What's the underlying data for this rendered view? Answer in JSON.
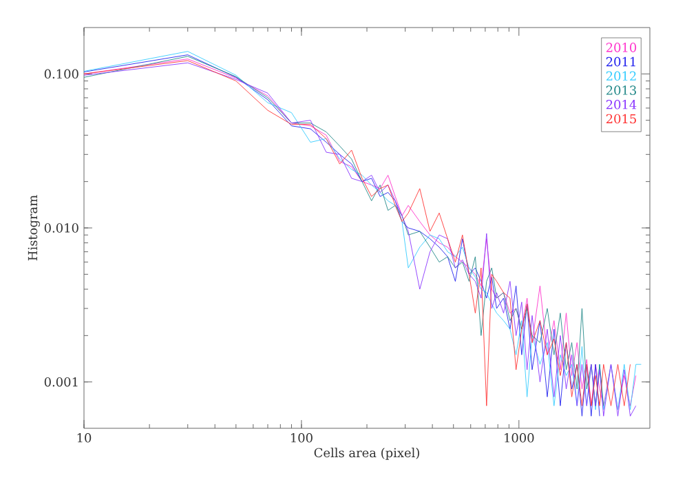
{
  "chart_data": {
    "type": "line",
    "xlabel": "Cells area (pixel)",
    "ylabel": "Histogram",
    "log": "xy",
    "legend": "top right",
    "grid": false,
    "marker": "none",
    "line_style": "solid",
    "xlim": [
      10,
      4000
    ],
    "ylim": [
      0.0005,
      0.2
    ],
    "xticks": [
      10,
      100,
      1000
    ],
    "yticks": [
      {
        "value": 0.001,
        "label": "0.001"
      },
      {
        "value": 0.01,
        "label": "0.010"
      },
      {
        "value": 0.1,
        "label": "0.100"
      }
    ],
    "x": [
      10,
      30,
      50,
      70,
      90,
      110,
      130,
      150,
      170,
      190,
      210,
      230,
      250,
      270,
      290,
      310,
      350,
      390,
      430,
      470,
      510,
      550,
      590,
      630,
      670,
      710,
      750,
      790,
      850,
      910,
      970,
      1030,
      1090,
      1150,
      1250,
      1350,
      1450,
      1550,
      1650,
      1750,
      1850,
      1950,
      2050,
      2150,
      2250,
      2350,
      2450,
      2650,
      2850,
      3050,
      3250,
      3450,
      3650
    ],
    "series": [
      {
        "name": "2010",
        "color": "#ff33cc",
        "values": [
          0.1,
          0.125,
          0.094,
          0.072,
          0.048,
          0.046,
          0.04,
          0.027,
          0.025,
          0.02,
          0.019,
          0.018,
          0.022,
          0.016,
          0.012,
          0.014,
          0.011,
          0.009,
          0.008,
          0.0075,
          0.0065,
          0.006,
          0.0055,
          0.005,
          0.0042,
          0.0085,
          0.004,
          0.0035,
          0.0038,
          0.0028,
          0.003,
          0.0022,
          0.0035,
          0.0018,
          0.0042,
          0.0015,
          0.0025,
          0.0012,
          0.0028,
          0.0011,
          0.0018,
          0.0009,
          0.0014,
          0.0007,
          0.0013,
          0.0009,
          0.0007,
          0.0013,
          0.00066,
          0.0011,
          0.0007,
          0.0011,
          null
        ]
      },
      {
        "name": "2011",
        "color": "#2222ee",
        "values": [
          0.103,
          0.133,
          0.095,
          0.068,
          0.046,
          0.044,
          0.036,
          0.03,
          0.026,
          0.02,
          0.021,
          0.016,
          0.017,
          0.015,
          0.011,
          0.01,
          0.0095,
          0.0085,
          0.0075,
          0.0065,
          0.0045,
          0.0085,
          0.005,
          0.0055,
          0.0045,
          0.0035,
          0.0048,
          0.003,
          0.0035,
          0.0022,
          0.0042,
          0.0015,
          0.0032,
          0.0012,
          0.0025,
          0.0008,
          0.0022,
          0.0007,
          0.0018,
          0.0009,
          0.0013,
          0.0006,
          0.0013,
          0.0006,
          0.0013,
          0.0006,
          null,
          null,
          null,
          null,
          null,
          null,
          null
        ]
      },
      {
        "name": "2012",
        "color": "#33ccff",
        "values": [
          0.104,
          0.14,
          0.098,
          0.065,
          0.056,
          0.036,
          0.038,
          0.028,
          0.024,
          0.022,
          0.019,
          0.017,
          0.015,
          0.014,
          0.011,
          0.0055,
          0.0075,
          0.009,
          0.0085,
          0.007,
          0.0065,
          0.0075,
          0.0055,
          0.0048,
          0.004,
          0.0038,
          0.0032,
          0.0028,
          0.0025,
          0.0022,
          0.0015,
          0.0025,
          0.0008,
          0.002,
          0.0013,
          0.0018,
          0.0007,
          0.0015,
          0.0011,
          0.0013,
          0.0007,
          0.0017,
          0.0007,
          0.0013,
          0.00066,
          0.0013,
          0.00066,
          0.0013,
          0.00066,
          0.0013,
          0.00066,
          0.0013,
          0.0013
        ]
      },
      {
        "name": "2013",
        "color": "#228888",
        "values": [
          0.095,
          0.13,
          0.096,
          0.07,
          0.048,
          0.048,
          0.042,
          0.034,
          0.028,
          0.02,
          0.015,
          0.019,
          0.013,
          0.014,
          0.012,
          0.009,
          0.0095,
          0.0075,
          0.006,
          0.0065,
          0.0055,
          0.006,
          0.0045,
          0.0065,
          0.002,
          0.0045,
          0.0055,
          0.0035,
          0.0038,
          0.0025,
          0.003,
          0.0022,
          0.003,
          0.002,
          0.0018,
          0.003,
          0.0015,
          0.0028,
          0.0012,
          0.0018,
          0.0009,
          0.003,
          0.0009,
          0.0013,
          0.0007,
          0.0013,
          0.0007,
          null,
          null,
          null,
          null,
          null,
          null
        ]
      },
      {
        "name": "2014",
        "color": "#8833ff",
        "values": [
          0.098,
          0.118,
          0.092,
          0.075,
          0.048,
          0.05,
          0.031,
          0.03,
          0.021,
          0.02,
          0.022,
          0.017,
          0.019,
          0.015,
          0.012,
          0.0095,
          0.004,
          0.007,
          0.009,
          0.0085,
          0.0055,
          0.0062,
          0.005,
          0.0045,
          0.0035,
          0.0092,
          0.003,
          0.0038,
          0.0028,
          0.0045,
          0.002,
          0.0033,
          0.0012,
          0.0027,
          0.001,
          0.0022,
          0.0008,
          0.002,
          0.0009,
          0.0015,
          0.0007,
          0.0013,
          0.0007,
          0.0013,
          0.0007,
          0.0012,
          0.0006,
          0.0013,
          0.0006,
          0.0012,
          0.0006,
          0.0007,
          null
        ]
      },
      {
        "name": "2015",
        "color": "#ff3333",
        "values": [
          0.1,
          0.122,
          0.09,
          0.058,
          0.047,
          0.047,
          0.038,
          0.026,
          0.032,
          0.021,
          0.016,
          0.018,
          0.019,
          0.014,
          0.011,
          0.0125,
          0.018,
          0.0095,
          0.0125,
          0.0085,
          0.006,
          0.009,
          0.005,
          0.0028,
          0.0055,
          0.0007,
          0.005,
          0.0045,
          0.0038,
          0.0035,
          0.0012,
          0.0022,
          0.0032,
          0.0018,
          0.0025,
          0.0015,
          0.0019,
          0.0011,
          0.0018,
          0.0008,
          0.0013,
          0.0007,
          0.0013,
          0.0007,
          0.0011,
          0.0007,
          0.0013,
          0.0007,
          0.0013,
          0.0007,
          0.0013,
          null,
          null
        ]
      }
    ]
  }
}
